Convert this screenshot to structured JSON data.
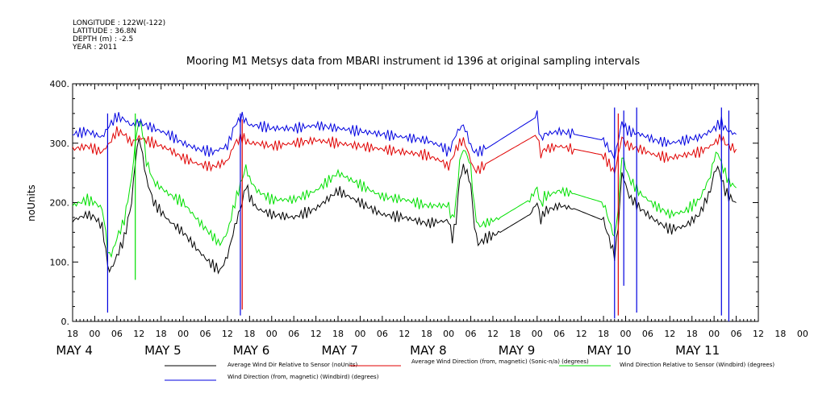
{
  "header": {
    "longitude": "LONGITUDE : 122W(-122)",
    "latitude": "LATITUDE : 36.8N",
    "depth": "DEPTH (m) : -2.5",
    "year": "YEAR : 2011"
  },
  "chart_data": {
    "type": "line",
    "title": "Mooring M1 Metsys data from MBARI instrument id 1396 at original sampling intervals",
    "ylabel": "noUnits",
    "xlabel": "",
    "ylim": [
      0,
      400
    ],
    "yticks": [
      "0.",
      "100.",
      "200.",
      "300.",
      "400."
    ],
    "xlim": [
      -6,
      180
    ],
    "xticks_hours": [
      "18",
      "00",
      "06",
      "12",
      "18",
      "00",
      "06",
      "12",
      "18",
      "00",
      "06",
      "12",
      "18",
      "00",
      "06",
      "12",
      "18",
      "00",
      "06",
      "12",
      "18",
      "00",
      "06",
      "12",
      "18",
      "00",
      "06",
      "12",
      "18",
      "00",
      "06",
      "12",
      "18",
      "00",
      "06",
      "12",
      "18",
      "00",
      "06",
      "12",
      "18",
      "00",
      "06",
      "12",
      "18",
      "00",
      "06",
      "12",
      "18"
    ],
    "day_labels": [
      {
        "label": "MAY  4",
        "hour": 0
      },
      {
        "label": "MAY  5",
        "hour": 24
      },
      {
        "label": "MAY  6",
        "hour": 48
      },
      {
        "label": "MAY  7",
        "hour": 72
      },
      {
        "label": "MAY  8",
        "hour": 96
      },
      {
        "label": "MAY  9",
        "hour": 120
      },
      {
        "label": "MAY 10",
        "hour": 144
      },
      {
        "label": "MAY 11",
        "hour": 168
      }
    ],
    "grid": false,
    "legend_position": "bottom",
    "series": [
      {
        "name": "Average Wind Dir Relative to Sensor (noUnits)",
        "color": "#000000",
        "x": [
          -6,
          -2,
          0,
          2,
          3,
          3.5,
          4,
          5,
          6,
          8,
          10,
          11,
          12,
          13,
          14,
          16,
          20,
          24,
          28,
          31,
          34,
          36,
          38,
          40,
          41,
          42,
          44,
          48,
          54,
          60,
          66,
          72,
          78,
          84,
          90,
          96,
          97,
          98,
          99,
          100,
          101,
          102,
          103,
          104,
          106,
          110,
          118,
          120,
          121,
          122,
          126,
          130,
          138,
          141,
          142,
          143,
          144,
          145,
          148,
          152,
          156,
          160,
          164,
          167,
          168,
          169,
          170,
          171,
          172,
          174
        ],
        "values": [
          170,
          180,
          175,
          160,
          120,
          95,
          85,
          95,
          110,
          140,
          200,
          270,
          310,
          280,
          240,
          200,
          170,
          150,
          120,
          100,
          85,
          110,
          160,
          200,
          230,
          210,
          190,
          180,
          175,
          190,
          220,
          200,
          180,
          175,
          165,
          170,
          140,
          170,
          240,
          260,
          250,
          230,
          160,
          130,
          140,
          150,
          180,
          200,
          170,
          185,
          195,
          190,
          170,
          110,
          160,
          250,
          230,
          210,
          190,
          170,
          155,
          160,
          180,
          220,
          250,
          260,
          240,
          220,
          210,
          200
        ]
      },
      {
        "name": "Average Wind Direction (from, magnetic) (Sonic-n/a) (degrees)",
        "color": "#e00000",
        "x": [
          -6,
          -2,
          0,
          2,
          4,
          6,
          8,
          10,
          12,
          14,
          16,
          20,
          24,
          28,
          32,
          36,
          38,
          40,
          42,
          44,
          48,
          54,
          60,
          66,
          72,
          78,
          84,
          90,
          94,
          96,
          97,
          98,
          99,
          100,
          101,
          102,
          103,
          104,
          106,
          120,
          121,
          122,
          126,
          130,
          138,
          141,
          142,
          143,
          144,
          145,
          148,
          152,
          156,
          160,
          164,
          167,
          168,
          169,
          170,
          171,
          172,
          174
        ],
        "values": [
          290,
          295,
          290,
          285,
          300,
          320,
          315,
          300,
          310,
          305,
          300,
          290,
          275,
          265,
          260,
          270,
          300,
          310,
          300,
          300,
          295,
          300,
          305,
          300,
          295,
          290,
          285,
          280,
          270,
          260,
          275,
          290,
          300,
          305,
          290,
          270,
          255,
          255,
          265,
          315,
          280,
          290,
          295,
          290,
          280,
          250,
          280,
          310,
          300,
          295,
          290,
          280,
          275,
          280,
          285,
          295,
          300,
          305,
          310,
          300,
          295,
          290
        ]
      },
      {
        "name": "Wind Direction Relative to Sensor (Windbird) (degrees)",
        "color": "#00e000",
        "x": [
          -6,
          -2,
          0,
          2,
          3,
          3.5,
          4,
          5,
          6,
          8,
          10,
          11,
          12,
          13,
          14,
          16,
          20,
          24,
          28,
          31,
          34,
          36,
          38,
          40,
          41,
          42,
          44,
          48,
          54,
          60,
          66,
          72,
          78,
          84,
          90,
          96,
          97,
          98,
          99,
          100,
          101,
          102,
          103,
          104,
          106,
          110,
          118,
          120,
          121,
          122,
          126,
          130,
          138,
          141,
          142,
          143,
          144,
          145,
          148,
          152,
          156,
          160,
          164,
          167,
          168,
          169,
          170,
          171,
          172,
          174
        ],
        "values": [
          195,
          205,
          200,
          190,
          150,
          120,
          110,
          120,
          140,
          170,
          240,
          300,
          340,
          320,
          270,
          235,
          215,
          200,
          170,
          150,
          130,
          150,
          200,
          240,
          260,
          240,
          220,
          205,
          205,
          220,
          250,
          230,
          210,
          205,
          195,
          195,
          170,
          200,
          270,
          290,
          280,
          260,
          190,
          160,
          165,
          175,
          205,
          225,
          195,
          210,
          220,
          215,
          200,
          140,
          190,
          280,
          260,
          240,
          215,
          195,
          180,
          185,
          205,
          245,
          275,
          285,
          265,
          250,
          235,
          225
        ]
      },
      {
        "name": "Wind Direction (from, magnetic) (Windbird) (degrees)",
        "color": "#0000e0",
        "x": [
          -6,
          -2,
          0,
          2,
          4,
          6,
          8,
          10,
          12,
          14,
          16,
          20,
          24,
          28,
          32,
          36,
          38,
          40,
          42,
          44,
          48,
          54,
          60,
          66,
          72,
          78,
          84,
          90,
          94,
          96,
          97,
          98,
          99,
          100,
          101,
          102,
          103,
          104,
          106,
          120,
          121,
          122,
          126,
          130,
          138,
          141,
          142,
          143,
          144,
          145,
          148,
          152,
          156,
          160,
          164,
          167,
          168,
          169,
          170,
          171,
          172,
          174
        ],
        "values": [
          315,
          320,
          315,
          310,
          330,
          345,
          340,
          330,
          335,
          330,
          325,
          315,
          300,
          290,
          285,
          295,
          330,
          345,
          330,
          330,
          325,
          325,
          330,
          325,
          320,
          315,
          310,
          305,
          295,
          285,
          300,
          315,
          325,
          330,
          315,
          295,
          285,
          285,
          290,
          345,
          305,
          315,
          320,
          315,
          305,
          275,
          305,
          335,
          325,
          320,
          315,
          305,
          300,
          305,
          310,
          320,
          325,
          330,
          335,
          325,
          320,
          315
        ]
      }
    ]
  }
}
